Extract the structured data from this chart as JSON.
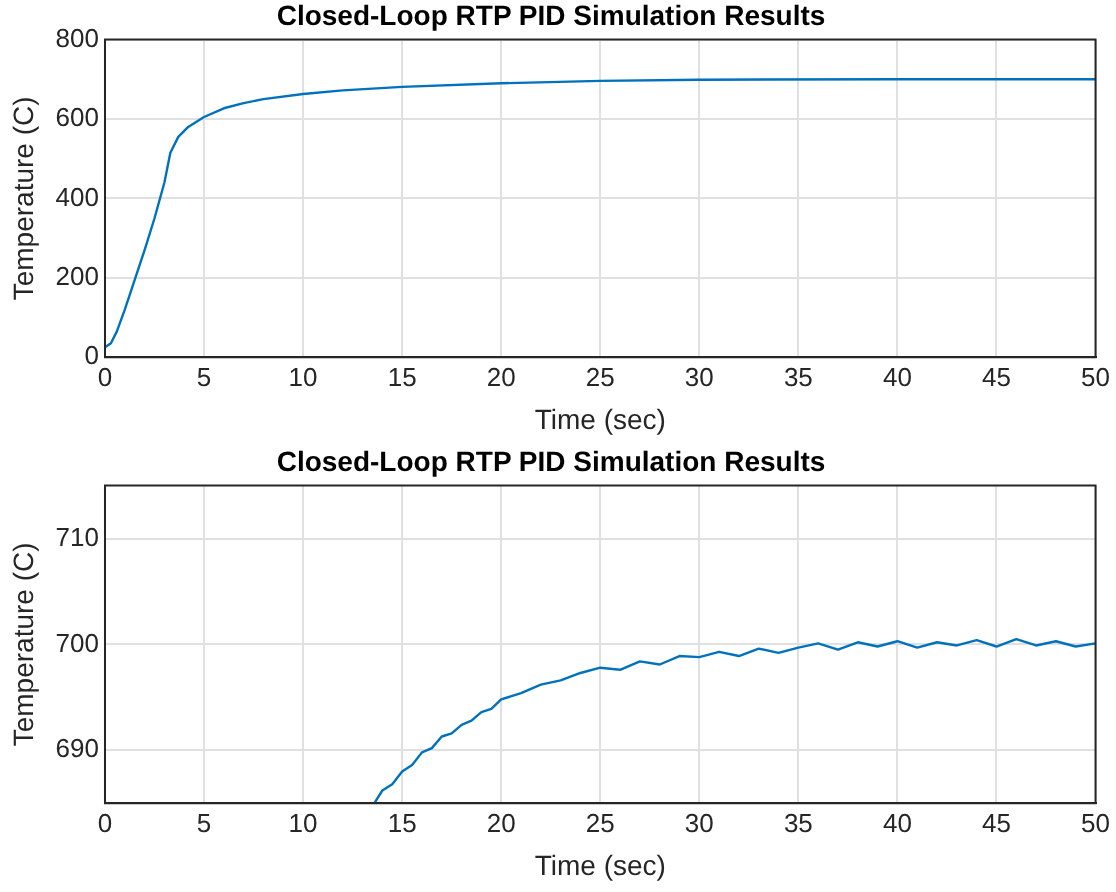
{
  "chart_data": [
    {
      "type": "line",
      "title": "Closed-Loop RTP PID Simulation Results",
      "xlabel": "Time (sec)",
      "ylabel": "Temperature (C)",
      "xlim": [
        0,
        50
      ],
      "xticks": [
        0,
        5,
        10,
        15,
        20,
        25,
        30,
        35,
        40,
        45,
        50
      ],
      "ylim": [
        0,
        800
      ],
      "yticks": [
        0,
        200,
        400,
        600,
        800
      ],
      "grid": true,
      "marker": "none",
      "line_style": "solid",
      "series": [
        {
          "color": "#0072bd",
          "x": [
            0,
            0.3,
            0.6,
            1,
            1.5,
            2,
            2.5,
            3,
            3.3,
            3.7,
            4.2,
            5,
            6,
            7,
            8,
            10,
            12,
            15,
            20,
            25,
            30,
            40,
            50
          ],
          "values": [
            25,
            35,
            65,
            120,
            195,
            270,
            350,
            440,
            515,
            555,
            580,
            605,
            627,
            640,
            650,
            663,
            672,
            681,
            690,
            696,
            699,
            700,
            700
          ]
        }
      ]
    },
    {
      "type": "line",
      "title": "Closed-Loop RTP PID Simulation Results",
      "xlabel": "Time (sec)",
      "ylabel": "Temperature (C)",
      "xlim": [
        0,
        50
      ],
      "xticks": [
        0,
        5,
        10,
        15,
        20,
        25,
        30,
        35,
        40,
        45,
        50
      ],
      "ylim": [
        685,
        715
      ],
      "yticks": [
        690,
        700,
        710
      ],
      "grid": true,
      "marker": "none",
      "line_style": "solid",
      "series": [
        {
          "color": "#0072bd",
          "x": [
            13.6,
            14,
            14.5,
            15,
            15.5,
            16,
            16.5,
            17,
            17.5,
            18,
            18.5,
            19,
            19.5,
            20,
            21,
            22,
            23,
            24,
            25,
            26,
            27,
            28,
            29,
            30,
            31,
            32,
            33,
            34,
            35,
            36,
            37,
            38,
            39,
            40,
            41,
            42,
            43,
            44,
            45,
            46,
            47,
            48,
            49,
            50
          ],
          "values": [
            685,
            686.2,
            686.8,
            688,
            688.6,
            689.8,
            690.2,
            691.3,
            691.6,
            692.4,
            692.8,
            693.6,
            693.9,
            694.8,
            695.4,
            696.2,
            696.6,
            697.3,
            697.8,
            697.6,
            698.4,
            698.1,
            698.9,
            698.8,
            699.3,
            698.9,
            699.6,
            699.2,
            699.7,
            700.1,
            699.5,
            700.2,
            699.8,
            700.3,
            699.7,
            700.2,
            699.9,
            700.4,
            699.8,
            700.5,
            699.9,
            700.3,
            699.8,
            700.1
          ]
        }
      ]
    }
  ]
}
